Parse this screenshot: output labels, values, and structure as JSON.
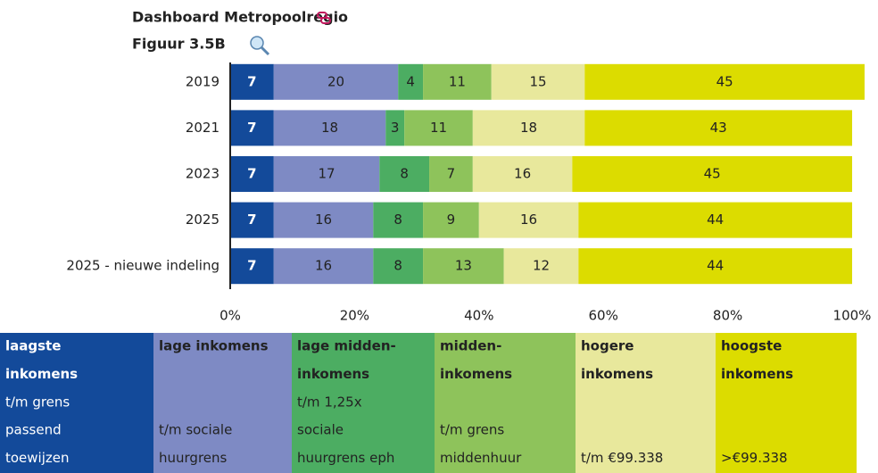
{
  "chart_data": {
    "type": "stacked-barh",
    "title": "Dashboard Metropoolregio",
    "subtitle": "Figuur 3.5B",
    "categories": [
      "2019",
      "2021",
      "2023",
      "2025",
      "2025 - nieuwe indeling"
    ],
    "series": [
      {
        "name": "laagste inkomens",
        "color": "#134a9a",
        "values": [
          7,
          7,
          7,
          7,
          7
        ]
      },
      {
        "name": "lage inkomens",
        "color": "#7e8ac4",
        "values": [
          20,
          18,
          17,
          16,
          16
        ]
      },
      {
        "name": "lage midden-inkomens",
        "color": "#4cad62",
        "values": [
          4,
          3,
          8,
          8,
          8
        ]
      },
      {
        "name": "midden-inkomens",
        "color": "#8ec35b",
        "values": [
          11,
          11,
          7,
          9,
          13
        ]
      },
      {
        "name": "hogere inkomens",
        "color": "#e8e89c",
        "values": [
          15,
          18,
          16,
          16,
          12
        ]
      },
      {
        "name": "hoogste inkomens",
        "color": "#dcdc00",
        "values": [
          45,
          43,
          45,
          44,
          44
        ]
      }
    ],
    "xlim": [
      0,
      100
    ],
    "xticks": [
      {
        "value": 0,
        "label": "0%"
      },
      {
        "value": 20,
        "label": "20%"
      },
      {
        "value": 40,
        "label": "40%"
      },
      {
        "value": 60,
        "label": "60%"
      },
      {
        "value": 80,
        "label": "80%"
      },
      {
        "value": 100,
        "label": "100%"
      }
    ]
  },
  "legend_table": {
    "rows": [
      [
        "laagste",
        "lage inkomens",
        "lage midden-",
        "midden-",
        "hogere",
        "hoogste"
      ],
      [
        "inkomens",
        null,
        "inkomens",
        "inkomens",
        "inkomens",
        "inkomens"
      ],
      [
        "t/m grens",
        null,
        "t/m 1,25x",
        null,
        null,
        null
      ],
      [
        "passend",
        "t/m sociale",
        "sociale",
        "t/m grens",
        null,
        null
      ],
      [
        "toewijzen",
        "huurgrens",
        "huurgrens eph",
        "middenhuur",
        "t/m €99.338",
        ">€99.338"
      ]
    ]
  }
}
